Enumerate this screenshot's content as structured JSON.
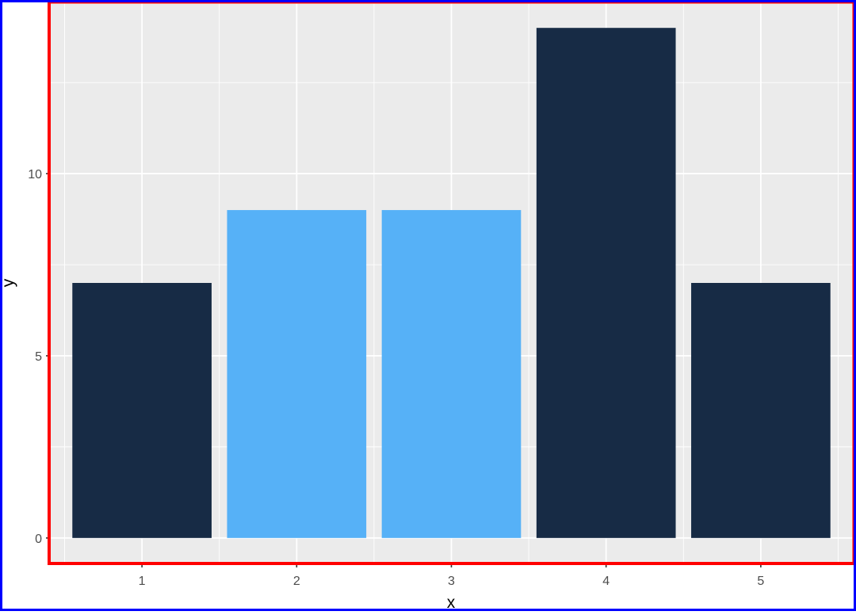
{
  "chart_data": {
    "type": "bar",
    "title": "",
    "xlabel": "x",
    "ylabel": "y",
    "categories": [
      "1",
      "2",
      "3",
      "4",
      "5"
    ],
    "values": [
      7,
      9,
      9,
      14,
      7
    ],
    "bar_colors": [
      "#172B45",
      "#56B1F7",
      "#56B1F7",
      "#172B45",
      "#172B45"
    ],
    "ylim": [
      -0.7,
      14.7
    ],
    "xlim": [
      0.4,
      5.6
    ],
    "y_ticks": [
      0,
      5,
      10
    ],
    "y_tick_labels": [
      "0",
      "5",
      "10"
    ],
    "x_ticks": [
      1,
      2,
      3,
      4,
      5
    ],
    "x_tick_labels": [
      "1",
      "2",
      "3",
      "4",
      "5"
    ],
    "grid": true,
    "legend": "none",
    "panel_background": "#EBEBEB",
    "grid_color": "#FFFFFF",
    "tick_label_color": "#4D4D4D",
    "outer_border_color": "#0000FF",
    "panel_border_color": "#FF0000"
  }
}
